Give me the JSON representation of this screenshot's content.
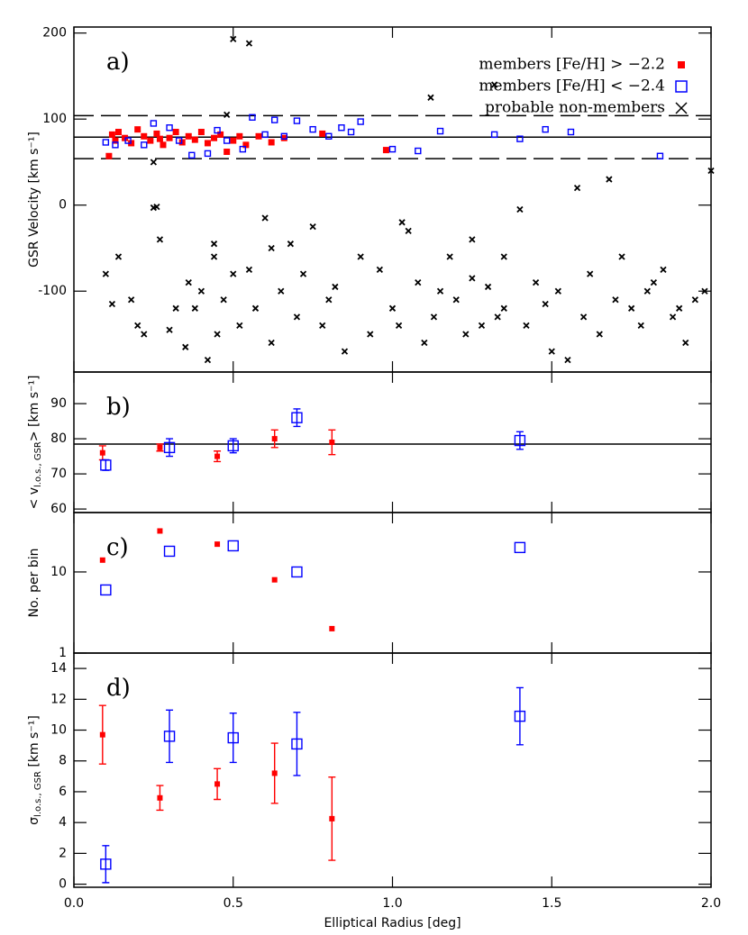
{
  "chart_data": [
    {
      "type": "scatter",
      "panel_label": "a)",
      "ylabel": "GSR Velocity [km s⁻¹]",
      "ylim": [
        -194,
        207
      ],
      "yticks": [
        -100,
        0,
        100,
        200
      ],
      "xlim": [
        0,
        2
      ],
      "xticks": [
        {
          "value": 0,
          "label": "0.0"
        },
        {
          "value": 0.5,
          "label": "0.5"
        },
        {
          "value": 1,
          "label": "1.0"
        },
        {
          "value": 1.5,
          "label": "1.5"
        },
        {
          "value": 2,
          "label": "2.0"
        }
      ],
      "hlines": [
        {
          "value": 79,
          "style": "solid"
        },
        {
          "value": 104,
          "style": "dashed"
        },
        {
          "value": 54,
          "style": "dashed"
        }
      ],
      "legend": "upper right",
      "series": [
        {
          "name": "members [Fe/H] > −2.2",
          "color": "#ff0000",
          "marker": "filled-square",
          "x": [
            0.11,
            0.12,
            0.14,
            0.16,
            0.18,
            0.2,
            0.22,
            0.24,
            0.26,
            0.28,
            0.3,
            0.32,
            0.34,
            0.36,
            0.38,
            0.4,
            0.42,
            0.44,
            0.46,
            0.48,
            0.5,
            0.52,
            0.54,
            0.58,
            0.62,
            0.66,
            0.78,
            0.98,
            0.13,
            0.27
          ],
          "y": [
            57,
            82,
            85,
            78,
            72,
            88,
            80,
            75,
            83,
            70,
            78,
            85,
            73,
            80,
            76,
            85,
            72,
            78,
            82,
            62,
            75,
            80,
            70,
            80,
            73,
            78,
            83,
            64,
            75,
            77
          ]
        },
        {
          "name": "members [Fe/H] < −2.4",
          "color": "#0000ff",
          "marker": "open-square",
          "x": [
            0.1,
            0.13,
            0.17,
            0.22,
            0.25,
            0.3,
            0.33,
            0.37,
            0.42,
            0.45,
            0.48,
            0.53,
            0.56,
            0.6,
            0.63,
            0.66,
            0.7,
            0.75,
            0.8,
            0.84,
            0.87,
            0.9,
            1.0,
            1.08,
            1.15,
            1.32,
            1.48,
            1.56,
            1.4,
            1.84
          ],
          "y": [
            73,
            70,
            75,
            70,
            95,
            90,
            75,
            58,
            60,
            87,
            75,
            65,
            102,
            82,
            99,
            80,
            98,
            88,
            80,
            90,
            85,
            97,
            65,
            63,
            86,
            82,
            88,
            85,
            77,
            57
          ]
        },
        {
          "name": "probable non-members",
          "color": "#000000",
          "marker": "x",
          "x": [
            0.1,
            0.12,
            0.14,
            0.18,
            0.2,
            0.22,
            0.25,
            0.27,
            0.3,
            0.32,
            0.35,
            0.36,
            0.38,
            0.4,
            0.42,
            0.44,
            0.45,
            0.47,
            0.5,
            0.52,
            0.55,
            0.57,
            0.6,
            0.62,
            0.65,
            0.68,
            0.7,
            0.72,
            0.75,
            0.78,
            0.8,
            0.82,
            0.85,
            0.9,
            0.93,
            0.96,
            1.0,
            1.02,
            1.05,
            1.08,
            1.1,
            1.13,
            1.15,
            1.18,
            1.2,
            1.23,
            1.25,
            1.28,
            1.3,
            1.33,
            1.35,
            1.4,
            1.42,
            1.45,
            1.48,
            1.5,
            1.52,
            1.55,
            1.58,
            1.6,
            1.62,
            1.65,
            1.68,
            1.7,
            1.72,
            1.75,
            1.78,
            1.8,
            1.82,
            1.85,
            1.88,
            1.9,
            1.92,
            1.95,
            1.98,
            2.0,
            0.5,
            0.55,
            0.48,
            1.12,
            1.32,
            0.26,
            0.25,
            0.44,
            0.62,
            1.03,
            1.25,
            1.35
          ],
          "y": [
            -80,
            -115,
            -60,
            -110,
            -140,
            -150,
            -3,
            -40,
            -145,
            -120,
            -165,
            -90,
            -120,
            -100,
            -180,
            -60,
            -150,
            -110,
            -80,
            -140,
            -75,
            -120,
            -15,
            -160,
            -100,
            -45,
            -130,
            -80,
            -25,
            -140,
            -110,
            -95,
            -170,
            -60,
            -150,
            -75,
            -120,
            -140,
            -30,
            -90,
            -160,
            -130,
            -100,
            -60,
            -110,
            -150,
            -85,
            -140,
            -95,
            -130,
            -120,
            -5,
            -140,
            -90,
            -115,
            -170,
            -100,
            -180,
            20,
            -130,
            -80,
            -150,
            30,
            -110,
            -60,
            -120,
            -140,
            -100,
            -90,
            -75,
            -130,
            -120,
            -160,
            -110,
            -100,
            40,
            193,
            188,
            105,
            125,
            140,
            -2,
            50,
            -45,
            -50,
            -20,
            -40,
            -60
          ]
        }
      ]
    },
    {
      "type": "errorbar",
      "panel_label": "b)",
      "ylabel_main": "< v",
      "ylabel_sub": "l.o.s., GSR",
      "ylabel_end": "> [km s⁻¹]",
      "ylim": [
        59,
        99
      ],
      "yticks": [
        60,
        70,
        80,
        90
      ],
      "xlim": [
        0,
        2
      ],
      "hlines": [
        {
          "value": 78.5,
          "style": "solid"
        }
      ],
      "series": [
        {
          "color": "#ff0000",
          "marker": "filled-square",
          "x": [
            0.09,
            0.27,
            0.45,
            0.63,
            0.81
          ],
          "values": [
            76,
            77.5,
            75,
            80,
            79
          ],
          "errors": [
            2,
            1,
            1.5,
            2.5,
            3.5
          ]
        },
        {
          "color": "#0000ff",
          "marker": "open-square",
          "x": [
            0.1,
            0.3,
            0.5,
            0.7,
            1.4
          ],
          "values": [
            72.5,
            77.5,
            78,
            86,
            79.5
          ],
          "errors": [
            1.5,
            2.5,
            2,
            2.5,
            2.5
          ]
        }
      ]
    },
    {
      "type": "errorbar",
      "panel_label": "c)",
      "ylabel": "No. per bin",
      "log_scale": true,
      "ylim": [
        1,
        54
      ],
      "yticks": [
        1,
        10
      ],
      "xlim": [
        0,
        2
      ],
      "series": [
        {
          "color": "#ff0000",
          "marker": "filled-square",
          "x": [
            0.09,
            0.27,
            0.45,
            0.63,
            0.81
          ],
          "values": [
            14,
            32,
            22,
            8,
            2
          ]
        },
        {
          "color": "#0000ff",
          "marker": "open-square",
          "x": [
            0.1,
            0.3,
            0.5,
            0.7,
            1.4
          ],
          "values": [
            6,
            18,
            21,
            10,
            20
          ]
        }
      ]
    },
    {
      "type": "errorbar",
      "panel_label": "d)",
      "ylabel_main": "σ",
      "ylabel_sub": "l.o.s., GSR",
      "ylabel_end": " [km s⁻¹]",
      "xlabel": "Elliptical Radius [deg]",
      "ylim": [
        -0.2,
        15
      ],
      "yticks": [
        0,
        2,
        4,
        6,
        8,
        10,
        12,
        14
      ],
      "xlim": [
        0,
        2
      ],
      "xticks": [
        {
          "value": 0,
          "label": "0.0"
        },
        {
          "value": 0.5,
          "label": "0.5"
        },
        {
          "value": 1,
          "label": "1.0"
        },
        {
          "value": 1.5,
          "label": "1.5"
        },
        {
          "value": 2,
          "label": "2.0"
        }
      ],
      "series": [
        {
          "color": "#ff0000",
          "marker": "filled-square",
          "x": [
            0.09,
            0.27,
            0.45,
            0.63,
            0.81
          ],
          "values": [
            9.7,
            5.6,
            6.5,
            7.2,
            4.25
          ],
          "errors": [
            1.9,
            0.8,
            1.0,
            1.95,
            2.7
          ]
        },
        {
          "color": "#0000ff",
          "marker": "open-square",
          "x": [
            0.1,
            0.3,
            0.5,
            0.7,
            1.4
          ],
          "values": [
            1.3,
            9.6,
            9.5,
            9.1,
            10.9
          ],
          "errors": [
            1.2,
            1.7,
            1.6,
            2.05,
            1.85
          ]
        }
      ]
    }
  ]
}
